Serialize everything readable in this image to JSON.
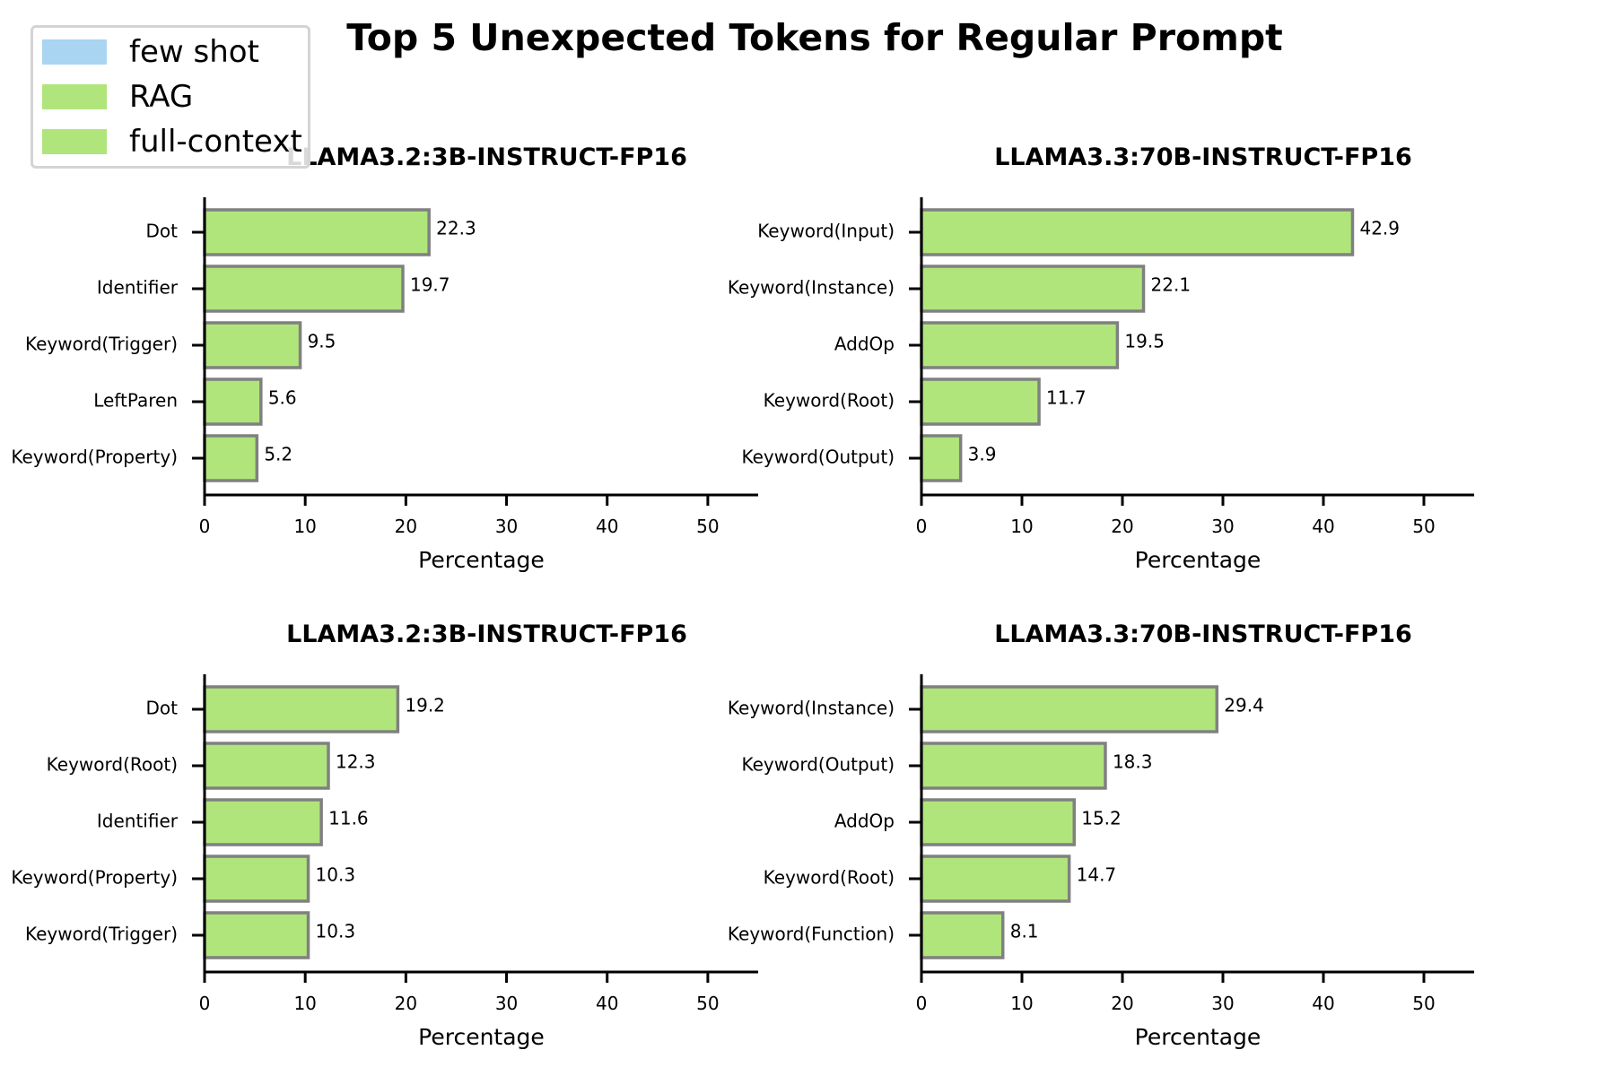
{
  "title": "Top 5 Unexpected Tokens for Regular Prompt",
  "legend": [
    {
      "label": "few shot",
      "color": "#a9d4f2"
    },
    {
      "label": "RAG",
      "color": "#b0e57c"
    },
    {
      "label": "full-context",
      "color": "#b0e57c"
    }
  ],
  "colors": {
    "bar_fill": "#b0e57c",
    "bar_edge": "#808080"
  },
  "chart_data": [
    {
      "type": "bar",
      "orientation": "horizontal",
      "title": "LLAMA3.2:3B-INSTRUCT-FP16",
      "xlabel": "Percentage",
      "ylabel": "",
      "xlim": [
        0,
        55
      ],
      "xticks": [
        0,
        10,
        20,
        30,
        40,
        50
      ],
      "categories": [
        "Dot",
        "Identifier",
        "Keyword(Trigger)",
        "LeftParen",
        "Keyword(Property)"
      ],
      "values": [
        22.3,
        19.7,
        9.5,
        5.6,
        5.2
      ],
      "value_labels": [
        "22.3",
        "19.7",
        "9.5",
        "5.6",
        "5.2"
      ]
    },
    {
      "type": "bar",
      "orientation": "horizontal",
      "title": "LLAMA3.3:70B-INSTRUCT-FP16",
      "xlabel": "Percentage",
      "ylabel": "",
      "xlim": [
        0,
        55
      ],
      "xticks": [
        0,
        10,
        20,
        30,
        40,
        50
      ],
      "categories": [
        "Keyword(Input)",
        "Keyword(Instance)",
        "AddOp",
        "Keyword(Root)",
        "Keyword(Output)"
      ],
      "values": [
        42.9,
        22.1,
        19.5,
        11.7,
        3.9
      ],
      "value_labels": [
        "42.9",
        "22.1",
        "19.5",
        "11.7",
        "3.9"
      ]
    },
    {
      "type": "bar",
      "orientation": "horizontal",
      "title": "LLAMA3.2:3B-INSTRUCT-FP16",
      "xlabel": "Percentage",
      "ylabel": "",
      "xlim": [
        0,
        55
      ],
      "xticks": [
        0,
        10,
        20,
        30,
        40,
        50
      ],
      "categories": [
        "Dot",
        "Keyword(Root)",
        "Identifier",
        "Keyword(Property)",
        "Keyword(Trigger)"
      ],
      "values": [
        19.2,
        12.3,
        11.6,
        10.3,
        10.3
      ],
      "value_labels": [
        "19.2",
        "12.3",
        "11.6",
        "10.3",
        "10.3"
      ]
    },
    {
      "type": "bar",
      "orientation": "horizontal",
      "title": "LLAMA3.3:70B-INSTRUCT-FP16",
      "xlabel": "Percentage",
      "ylabel": "",
      "xlim": [
        0,
        55
      ],
      "xticks": [
        0,
        10,
        20,
        30,
        40,
        50
      ],
      "categories": [
        "Keyword(Instance)",
        "Keyword(Output)",
        "AddOp",
        "Keyword(Root)",
        "Keyword(Function)"
      ],
      "values": [
        29.4,
        18.3,
        15.2,
        14.7,
        8.1
      ],
      "value_labels": [
        "29.4",
        "18.3",
        "15.2",
        "14.7",
        "8.1"
      ]
    }
  ]
}
